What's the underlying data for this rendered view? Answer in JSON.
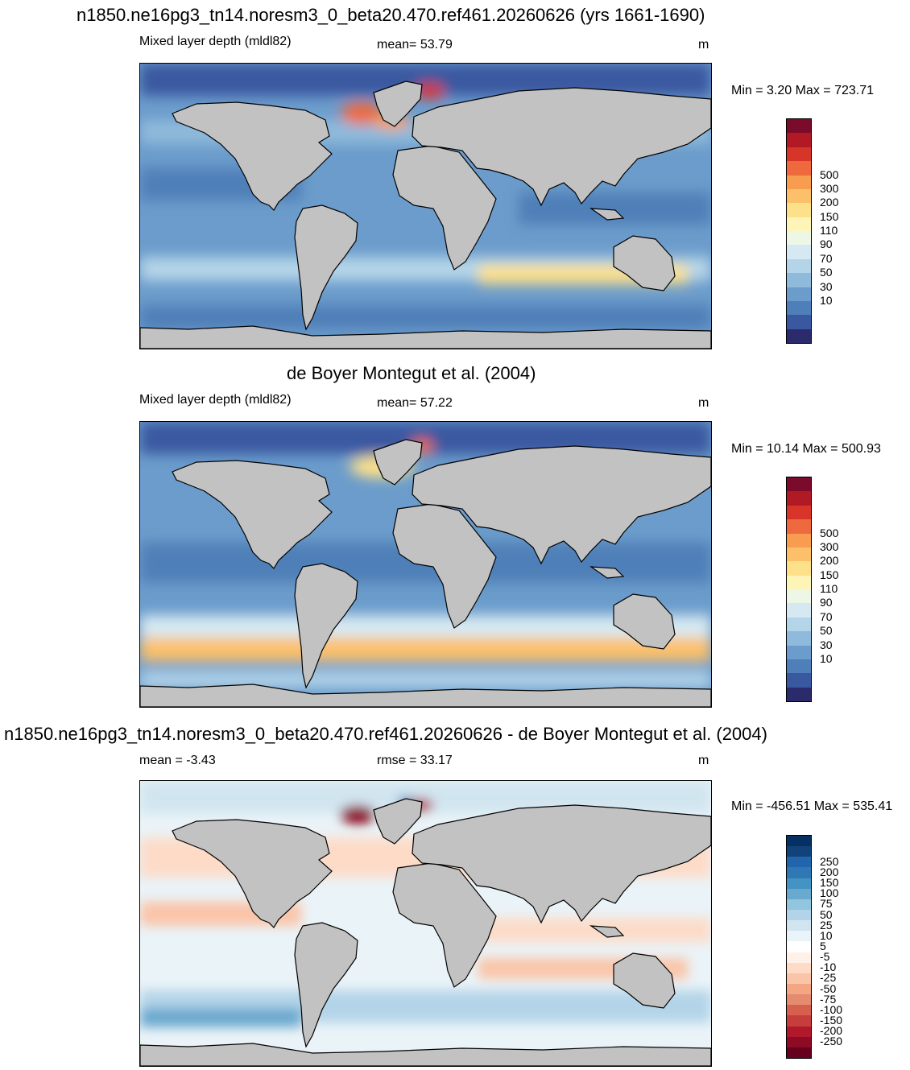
{
  "panels": [
    {
      "title": "n1850.ne16pg3_tn14.noresm3_0_beta20.470.ref461.20260626 (yrs 1661-1690)",
      "left_label": "Mixed layer depth (mldl82)",
      "center_label": "mean=  53.79",
      "units": "m",
      "minmax": "Min =   3.20 Max = 723.71",
      "colorbar_colors": [
        "#2b2a6b",
        "#3a58a0",
        "#4f7fb8",
        "#6b9ccb",
        "#8fbadb",
        "#b4d4e8",
        "#d6e9f2",
        "#eef6e6",
        "#fdf4b8",
        "#fde08a",
        "#fcc06a",
        "#f89c50",
        "#ee6a3e",
        "#d8352a",
        "#b11a25",
        "#7a0b2a"
      ],
      "colorbar_labels": [
        "500",
        "300",
        "200",
        "150",
        "110",
        "90",
        "70",
        "50",
        "30",
        "10"
      ]
    },
    {
      "title": "de Boyer Montegut et al. (2004)",
      "left_label": "Mixed layer depth (mldl82)",
      "center_label": "mean=  57.22",
      "units": "m",
      "minmax": "Min =  10.14 Max = 500.93",
      "colorbar_colors": [
        "#2b2a6b",
        "#3a58a0",
        "#4f7fb8",
        "#6b9ccb",
        "#8fbadb",
        "#b4d4e8",
        "#d6e9f2",
        "#eef6e6",
        "#fdf4b8",
        "#fde08a",
        "#fcc06a",
        "#f89c50",
        "#ee6a3e",
        "#d8352a",
        "#b11a25",
        "#7a0b2a"
      ],
      "colorbar_labels": [
        "500",
        "300",
        "200",
        "150",
        "110",
        "90",
        "70",
        "50",
        "30",
        "10"
      ]
    },
    {
      "title": "n1850.ne16pg3_tn14.noresm3_0_beta20.470.ref461.20260626 - de Boyer Montegut et al. (2004)",
      "left_label": "mean =  -3.43",
      "center_label": "rmse =  33.17",
      "units": "m",
      "minmax": "Min = -456.51 Max = 535.41",
      "colorbar_colors": [
        "#67001f",
        "#8e0b25",
        "#b2182b",
        "#c53e3d",
        "#d6604d",
        "#e48b70",
        "#f4a582",
        "#fac4a8",
        "#fddbc7",
        "#fff0e8",
        "#ffffff",
        "#eaf3f8",
        "#d1e5f0",
        "#b3d4e8",
        "#92c5de",
        "#6aa9cf",
        "#4393c3",
        "#2f78b4",
        "#2166ac",
        "#12427a",
        "#053061"
      ],
      "colorbar_labels": [
        "250",
        "200",
        "150",
        "100",
        "75",
        "50",
        "25",
        "10",
        "5",
        "-5",
        "-10",
        "-25",
        "-50",
        "-75",
        "-100",
        "-150",
        "-200",
        "-250"
      ]
    }
  ],
  "colors": {
    "land": "#c2c2c2",
    "coast": "#000000"
  }
}
